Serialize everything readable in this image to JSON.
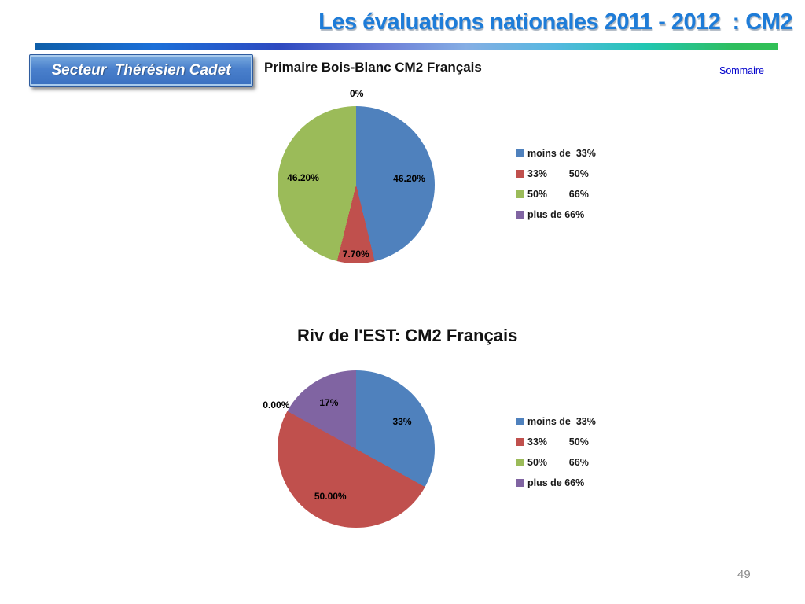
{
  "header": {
    "title": "Les évaluations nationales 2011 - 2012  : CM2",
    "color": "#1E7CD8"
  },
  "decor": {
    "bar_gradient": [
      "#0E5EA8 0%",
      "#1B6FD8 16%",
      "#2E49C0 33%",
      "#6D7FD8 47%",
      "#85AEE4 58%",
      "#55B8E0 70%",
      "#21C6B2 82%",
      "#2EBE5E 94%",
      "#31C055 100%"
    ]
  },
  "sector_button": {
    "label": "Secteur  Thérésien Cadet"
  },
  "sommaire_link": {
    "label": "Sommaire"
  },
  "page_number": "49",
  "chart_data": [
    {
      "type": "pie",
      "title": "Primaire Bois-Blanc CM2 Français",
      "categories": [
        "moins de  33%",
        "33%        50%",
        "50%        66%",
        "plus de 66%"
      ],
      "values": [
        46.2,
        7.7,
        46.2,
        0
      ],
      "labels": [
        "46.20%",
        "7.70%",
        "46.20%",
        "0%"
      ],
      "colors": [
        "#4F81BD",
        "#C0504D",
        "#9BBB59",
        "#8064A2"
      ],
      "legend_position": "right",
      "start_angle_deg": 0,
      "direction": "clockwise"
    },
    {
      "type": "pie",
      "title": "Riv de l'EST: CM2 Français",
      "categories": [
        "moins de  33%",
        "33%        50%",
        "50%        66%",
        "plus de 66%"
      ],
      "values": [
        33,
        50,
        0,
        17
      ],
      "labels": [
        "33%",
        "50.00%",
        "0.00%",
        "17%"
      ],
      "colors": [
        "#4F81BD",
        "#C0504D",
        "#9BBB59",
        "#8064A2"
      ],
      "legend_position": "right",
      "start_angle_deg": 0,
      "direction": "clockwise"
    }
  ]
}
